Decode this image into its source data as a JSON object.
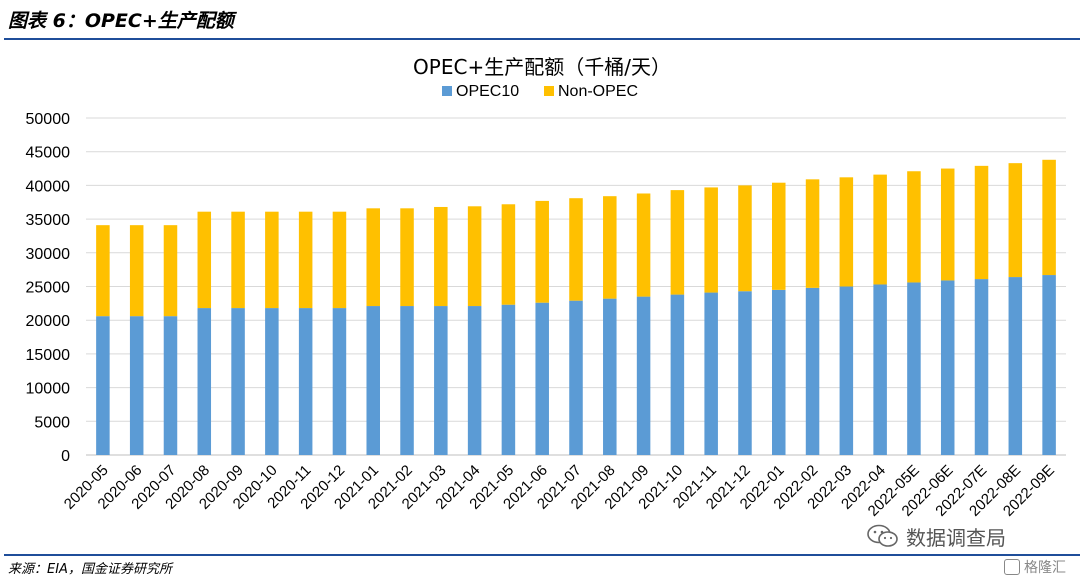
{
  "figure": {
    "label": "图表 6：OPEC+生产配额",
    "source": "来源：EIA，国金证券研究所"
  },
  "watermark": {
    "text": "数据调查局",
    "icon": "wechat-icon",
    "brand": "格隆汇"
  },
  "colors": {
    "opec10": "#5b9bd5",
    "nonopec": "#ffc000",
    "rule": "#1f4e9a",
    "grid": "#d9d9d9"
  },
  "chart_data": {
    "type": "bar",
    "stacked": true,
    "title": "OPEC+生产配额（千桶/天）",
    "xlabel": "",
    "ylabel": "",
    "ylim": [
      0,
      50000
    ],
    "yticks": [
      0,
      5000,
      10000,
      15000,
      20000,
      25000,
      30000,
      35000,
      40000,
      45000,
      50000
    ],
    "grid": true,
    "legend_position": "top-center",
    "categories": [
      "2020-05",
      "2020-06",
      "2020-07",
      "2020-08",
      "2020-09",
      "2020-10",
      "2020-11",
      "2020-12",
      "2021-01",
      "2021-02",
      "2021-03",
      "2021-04",
      "2021-05",
      "2021-06",
      "2021-07",
      "2021-08",
      "2021-09",
      "2021-10",
      "2021-11",
      "2021-12",
      "2022-01",
      "2022-02",
      "2022-03",
      "2022-04",
      "2022-05E",
      "2022-06E",
      "2022-07E",
      "2022-08E",
      "2022-09E"
    ],
    "series": [
      {
        "name": "OPEC10",
        "values": [
          20600,
          20600,
          20600,
          21800,
          21800,
          21800,
          21800,
          21800,
          22100,
          22100,
          22100,
          22100,
          22300,
          22600,
          22900,
          23200,
          23500,
          23800,
          24100,
          24300,
          24500,
          24800,
          25000,
          25300,
          25600,
          25900,
          26100,
          26400,
          26700
        ]
      },
      {
        "name": "Non-OPEC",
        "values": [
          13500,
          13500,
          13500,
          14300,
          14300,
          14300,
          14300,
          14300,
          14500,
          14500,
          14700,
          14800,
          14900,
          15100,
          15200,
          15200,
          15300,
          15500,
          15600,
          15700,
          15900,
          16100,
          16200,
          16300,
          16500,
          16600,
          16800,
          16900,
          17100
        ]
      }
    ]
  }
}
